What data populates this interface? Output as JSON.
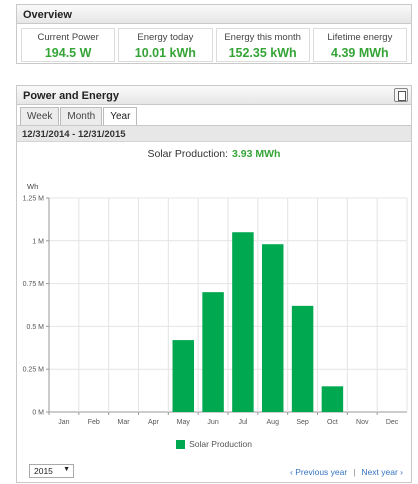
{
  "overview": {
    "title": "Overview",
    "cards": [
      {
        "label": "Current Power",
        "value": "194.5 W"
      },
      {
        "label": "Energy today",
        "value": "10.01 kWh"
      },
      {
        "label": "Energy this month",
        "value": "152.35 kWh"
      },
      {
        "label": "Lifetime energy",
        "value": "4.39 MWh"
      }
    ]
  },
  "power_energy": {
    "title": "Power and Energy",
    "tabs": [
      "Week",
      "Month",
      "Year"
    ],
    "active_tab": "Year",
    "date_range": "12/31/2014 - 12/31/2015",
    "summary_label": "Solar Production:",
    "summary_value": "3.93 MWh",
    "year_select": "2015",
    "prev_label": "‹ Previous year",
    "separator": "|",
    "next_label": "Next year ›"
  },
  "colors": {
    "accent_green": "#35a437",
    "bar_green": "#00a84f",
    "link_blue": "#3673c2"
  },
  "icons": {
    "export": "export-icon"
  },
  "chart_data": {
    "type": "bar",
    "ylabel": "Wh",
    "categories": [
      "Jan",
      "Feb",
      "Mar",
      "Apr",
      "May",
      "Jun",
      "Jul",
      "Aug",
      "Sep",
      "Oct",
      "Nov",
      "Dec"
    ],
    "series": [
      {
        "name": "Solar Production",
        "values": [
          0,
          0,
          0,
          0,
          420000,
          700000,
          1050000,
          980000,
          620000,
          150000,
          0,
          0
        ]
      }
    ],
    "ylim": [
      0,
      1250000
    ],
    "yticks": [
      0,
      250000,
      500000,
      750000,
      1000000,
      1250000
    ],
    "ytick_labels": [
      "0 M",
      "0.25 M",
      "0.5 M",
      "0.75 M",
      "1 M",
      "1.25 M"
    ],
    "grid": true,
    "legend": "bottom"
  }
}
